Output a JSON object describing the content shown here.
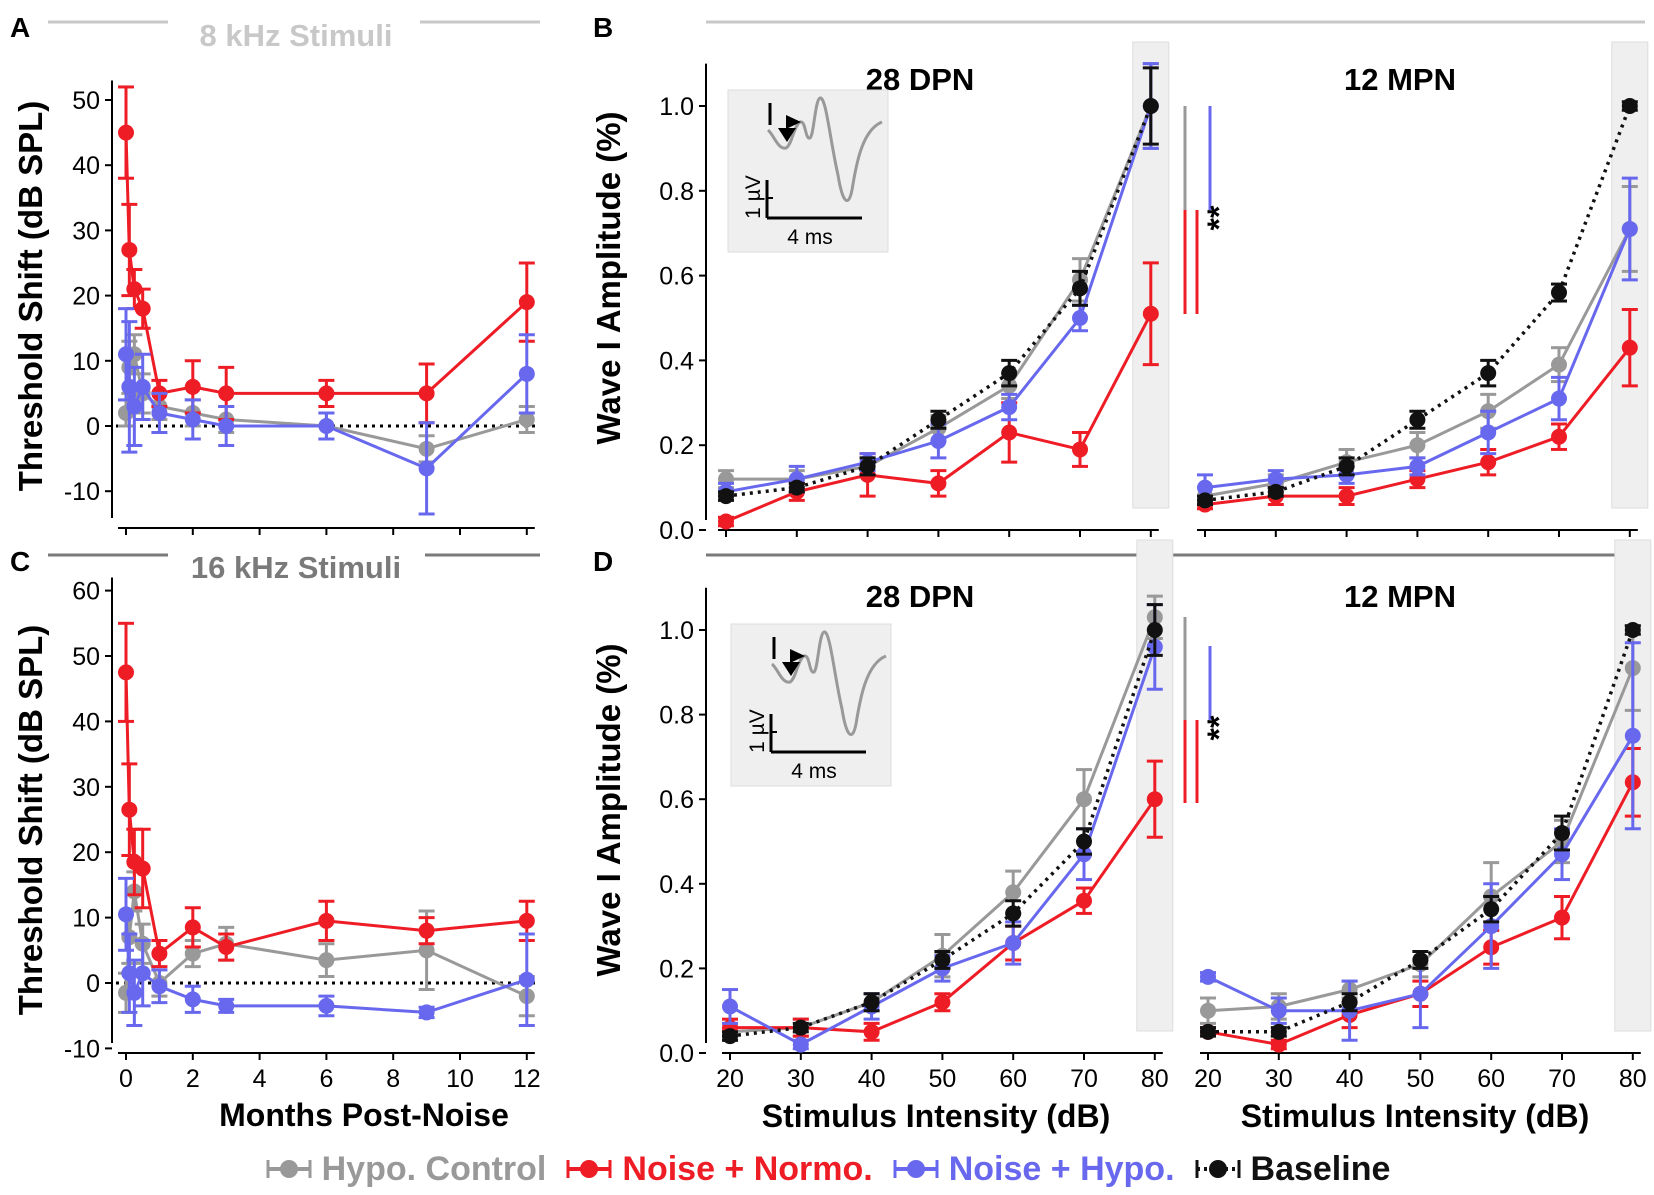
{
  "colors": {
    "hypo_control": "#999999",
    "noise_normo": "#ee1c25",
    "noise_hypo": "#6868ee",
    "baseline": "#111111",
    "shade": "#efefef",
    "title_light": "#c8c8c8",
    "title_dark": "#7a7a7a"
  },
  "legend": [
    {
      "key": "hypo_control",
      "label": "Hypo. Control"
    },
    {
      "key": "noise_normo",
      "label": "Noise + Normo."
    },
    {
      "key": "noise_hypo",
      "label": "Noise + Hypo."
    },
    {
      "key": "baseline",
      "label": "Baseline"
    }
  ],
  "chart_data": [
    {
      "panel": "A",
      "type": "line",
      "title": "8 kHz Stimuli",
      "xlabel": "",
      "ylabel": "Threshold Shift (dB SPL)",
      "xlim": [
        -0.4,
        12.4
      ],
      "ylim": [
        -15,
        53
      ],
      "yticks": [
        -10,
        0,
        10,
        20,
        30,
        40,
        50
      ],
      "ytick_labels": [
        "-10",
        "0",
        "10",
        "20",
        "30",
        "40",
        "50"
      ],
      "xticks": [
        0,
        2,
        4,
        6,
        8,
        10,
        12
      ],
      "xtick_labels": [],
      "reference_line": 0,
      "series": [
        {
          "key": "hypo_control",
          "x": [
            0,
            0.1,
            0.25,
            0.5,
            1,
            2,
            3,
            6,
            9,
            12
          ],
          "y": [
            2,
            9,
            11,
            5,
            3,
            2,
            1,
            0,
            -3.5,
            1
          ],
          "err": [
            2,
            4,
            3,
            3,
            2,
            2,
            2,
            2,
            2,
            2
          ]
        },
        {
          "key": "noise_normo",
          "x": [
            0,
            0.1,
            0.25,
            0.5,
            1,
            2,
            3,
            6,
            9,
            12
          ],
          "y": [
            45,
            27,
            21,
            18,
            5,
            6,
            5,
            5,
            5,
            19
          ],
          "err": [
            7,
            7,
            3,
            3,
            2,
            4,
            4,
            2,
            4.5,
            6
          ]
        },
        {
          "key": "noise_hypo",
          "x": [
            0,
            0.1,
            0.25,
            0.5,
            1,
            2,
            3,
            6,
            9,
            12
          ],
          "y": [
            11,
            6,
            3,
            6,
            2,
            1,
            0,
            0,
            -6.5,
            8
          ],
          "err": [
            7,
            10,
            6,
            5,
            3,
            3,
            3,
            2,
            7,
            6
          ]
        }
      ]
    },
    {
      "panel": "C",
      "type": "line",
      "title": "16 kHz Stimuli",
      "xlabel": "Months Post-Noise",
      "ylabel": "Threshold Shift (dB SPL)",
      "xlim": [
        -0.4,
        12.4
      ],
      "ylim": [
        -10,
        62
      ],
      "yticks": [
        -10,
        0,
        10,
        20,
        30,
        40,
        50,
        60
      ],
      "ytick_labels": [
        "-10",
        "0",
        "10",
        "20",
        "30",
        "40",
        "50",
        "60"
      ],
      "xticks": [
        0,
        2,
        4,
        6,
        8,
        10,
        12
      ],
      "xtick_labels": [
        "0",
        "2",
        "4",
        "6",
        "8",
        "10",
        "12"
      ],
      "reference_line": 0,
      "series": [
        {
          "key": "hypo_control",
          "x": [
            0,
            0.1,
            0.25,
            0.5,
            1,
            2,
            3,
            6,
            9,
            12
          ],
          "y": [
            -1.5,
            7,
            14,
            6,
            0,
            4.5,
            6,
            3.5,
            5,
            -2
          ],
          "err": [
            3,
            4,
            3,
            3,
            2,
            2,
            2.5,
            2.5,
            6,
            3
          ]
        },
        {
          "key": "noise_normo",
          "x": [
            0,
            0.1,
            0.25,
            0.5,
            1,
            2,
            3,
            6,
            9,
            12
          ],
          "y": [
            47.5,
            26.5,
            18.5,
            17.5,
            4.5,
            8.5,
            5.5,
            9.5,
            8,
            9.5
          ],
          "err": [
            7.5,
            7,
            5,
            6,
            2,
            3,
            2,
            3,
            2,
            3
          ]
        },
        {
          "key": "noise_hypo",
          "x": [
            0,
            0.1,
            0.25,
            0.5,
            1,
            2,
            3,
            6,
            9,
            12
          ],
          "y": [
            10.5,
            1.5,
            -1.5,
            1.5,
            -0.5,
            -2.5,
            -3.5,
            -3.5,
            -4.5,
            0.5
          ],
          "err": [
            5.5,
            6,
            5,
            5,
            2.5,
            2,
            1,
            1.5,
            0.8,
            7
          ]
        }
      ]
    },
    {
      "panel": "B",
      "type": "line",
      "subtitle": "28 DPN",
      "xlabel": "",
      "ylabel": "Wave I Amplitude (%)",
      "xlim": [
        17.5,
        82.5
      ],
      "ylim": [
        0,
        1.1
      ],
      "yticks": [
        0.0,
        0.2,
        0.4,
        0.6,
        0.8,
        1.0
      ],
      "ytick_labels": [
        "0.0",
        "0.2",
        "0.4",
        "0.6",
        "0.8",
        "1.0"
      ],
      "xticks": [
        20,
        30,
        40,
        50,
        60,
        70,
        80
      ],
      "xtick_labels": [],
      "shaded_x": 80,
      "significance": "**",
      "inset": {
        "ylabel": "1 µV",
        "xlabel": "4 ms"
      },
      "series": [
        {
          "key": "hypo_control",
          "x": [
            20,
            30,
            40,
            50,
            60,
            70,
            80
          ],
          "y": [
            0.12,
            0.12,
            0.15,
            0.24,
            0.34,
            0.59,
            1.0
          ],
          "err": [
            0.02,
            0.02,
            0.02,
            0.03,
            0.03,
            0.05,
            0.1
          ]
        },
        {
          "key": "noise_normo",
          "x": [
            20,
            30,
            40,
            50,
            60,
            70,
            80
          ],
          "y": [
            0.02,
            0.09,
            0.13,
            0.11,
            0.23,
            0.19,
            0.51
          ],
          "err": [
            0.01,
            0.02,
            0.05,
            0.03,
            0.07,
            0.04,
            0.12
          ]
        },
        {
          "key": "noise_hypo",
          "x": [
            20,
            30,
            40,
            50,
            60,
            70,
            80
          ],
          "y": [
            0.09,
            0.12,
            0.16,
            0.21,
            0.29,
            0.5,
            1.0
          ],
          "err": [
            0.02,
            0.03,
            0.02,
            0.04,
            0.03,
            0.03,
            0.1
          ]
        },
        {
          "key": "baseline",
          "x": [
            20,
            30,
            40,
            50,
            60,
            70,
            80
          ],
          "y": [
            0.08,
            0.1,
            0.15,
            0.26,
            0.37,
            0.57,
            1.0
          ],
          "err": [
            0.01,
            0.01,
            0.02,
            0.02,
            0.03,
            0.04,
            0.09
          ]
        }
      ]
    },
    {
      "panel": "B",
      "type": "line",
      "subtitle": "12 MPN",
      "xlabel": "",
      "ylabel": "",
      "xlim": [
        17.5,
        82.5
      ],
      "ylim": [
        0,
        1.1
      ],
      "yticks": [
        0.0,
        0.2,
        0.4,
        0.6,
        0.8,
        1.0
      ],
      "ytick_labels": [],
      "xticks": [
        20,
        30,
        40,
        50,
        60,
        70,
        80
      ],
      "xtick_labels": [],
      "shaded_x": 80,
      "series": [
        {
          "key": "hypo_control",
          "x": [
            20,
            30,
            40,
            50,
            60,
            70,
            80
          ],
          "y": [
            0.08,
            0.11,
            0.16,
            0.2,
            0.28,
            0.39,
            0.71
          ],
          "err": [
            0.02,
            0.02,
            0.03,
            0.03,
            0.04,
            0.04,
            0.1
          ]
        },
        {
          "key": "noise_normo",
          "x": [
            20,
            30,
            40,
            50,
            60,
            70,
            80
          ],
          "y": [
            0.06,
            0.08,
            0.08,
            0.12,
            0.16,
            0.22,
            0.43
          ],
          "err": [
            0.01,
            0.02,
            0.02,
            0.02,
            0.03,
            0.03,
            0.09
          ]
        },
        {
          "key": "noise_hypo",
          "x": [
            20,
            30,
            40,
            50,
            60,
            70,
            80
          ],
          "y": [
            0.1,
            0.12,
            0.13,
            0.15,
            0.23,
            0.31,
            0.71
          ],
          "err": [
            0.03,
            0.02,
            0.02,
            0.02,
            0.05,
            0.05,
            0.12
          ]
        },
        {
          "key": "baseline",
          "x": [
            20,
            30,
            40,
            50,
            60,
            70,
            80
          ],
          "y": [
            0.07,
            0.09,
            0.15,
            0.26,
            0.37,
            0.56,
            1.0
          ],
          "err": [
            0.01,
            0.01,
            0.02,
            0.02,
            0.03,
            0.02,
            0.01
          ]
        }
      ]
    },
    {
      "panel": "D",
      "type": "line",
      "subtitle": "28 DPN",
      "xlabel": "Stimulus Intensity (dB)",
      "ylabel": "Wave I Amplitude (%)",
      "xlim": [
        17.5,
        82.5
      ],
      "ylim": [
        0,
        1.1
      ],
      "yticks": [
        0.0,
        0.2,
        0.4,
        0.6,
        0.8,
        1.0
      ],
      "ytick_labels": [
        "0.0",
        "0.2",
        "0.4",
        "0.6",
        "0.8",
        "1.0"
      ],
      "xticks": [
        20,
        30,
        40,
        50,
        60,
        70,
        80
      ],
      "xtick_labels": [
        "20",
        "30",
        "40",
        "50",
        "60",
        "70",
        "80"
      ],
      "shaded_x": 80,
      "significance": "**",
      "inset": {
        "ylabel": "1 µV",
        "xlabel": "4 ms"
      },
      "series": [
        {
          "key": "hypo_control",
          "x": [
            20,
            30,
            40,
            50,
            60,
            70,
            80
          ],
          "y": [
            0.05,
            0.06,
            0.12,
            0.23,
            0.38,
            0.6,
            1.03
          ],
          "err": [
            0.02,
            0.02,
            0.02,
            0.05,
            0.05,
            0.07,
            0.05
          ]
        },
        {
          "key": "noise_normo",
          "x": [
            20,
            30,
            40,
            50,
            60,
            70,
            80
          ],
          "y": [
            0.06,
            0.06,
            0.05,
            0.12,
            0.26,
            0.36,
            0.6
          ],
          "err": [
            0.02,
            0.02,
            0.02,
            0.02,
            0.04,
            0.03,
            0.09
          ]
        },
        {
          "key": "noise_hypo",
          "x": [
            20,
            30,
            40,
            50,
            60,
            70,
            80
          ],
          "y": [
            0.11,
            0.02,
            0.11,
            0.2,
            0.26,
            0.47,
            0.96
          ],
          "err": [
            0.04,
            0.01,
            0.03,
            0.03,
            0.05,
            0.06,
            0.1
          ]
        },
        {
          "key": "baseline",
          "x": [
            20,
            30,
            40,
            50,
            60,
            70,
            80
          ],
          "y": [
            0.04,
            0.06,
            0.12,
            0.22,
            0.33,
            0.5,
            1.0
          ],
          "err": [
            0.01,
            0.01,
            0.02,
            0.02,
            0.03,
            0.03,
            0.06
          ]
        }
      ]
    },
    {
      "panel": "D",
      "type": "line",
      "subtitle": "12 MPN",
      "xlabel": "Stimulus Intensity (dB)",
      "ylabel": "",
      "xlim": [
        17.5,
        82.5
      ],
      "ylim": [
        0,
        1.1
      ],
      "yticks": [
        0.0,
        0.2,
        0.4,
        0.6,
        0.8,
        1.0
      ],
      "ytick_labels": [],
      "xticks": [
        20,
        30,
        40,
        50,
        60,
        70,
        80
      ],
      "xtick_labels": [
        "20",
        "30",
        "40",
        "50",
        "60",
        "70",
        "80"
      ],
      "shaded_x": 80,
      "series": [
        {
          "key": "hypo_control",
          "x": [
            20,
            30,
            40,
            50,
            60,
            70,
            80
          ],
          "y": [
            0.1,
            0.11,
            0.15,
            0.21,
            0.37,
            0.5,
            0.91
          ],
          "err": [
            0.03,
            0.03,
            0.02,
            0.03,
            0.08,
            0.05,
            0.1
          ]
        },
        {
          "key": "noise_normo",
          "x": [
            20,
            30,
            40,
            50,
            60,
            70,
            80
          ],
          "y": [
            0.05,
            0.02,
            0.09,
            0.14,
            0.25,
            0.32,
            0.64
          ],
          "err": [
            0.01,
            0.01,
            0.03,
            0.03,
            0.04,
            0.05,
            0.08
          ]
        },
        {
          "key": "noise_hypo",
          "x": [
            20,
            30,
            40,
            50,
            60,
            70,
            80
          ],
          "y": [
            0.18,
            0.1,
            0.1,
            0.14,
            0.3,
            0.47,
            0.75
          ],
          "err": [
            0.01,
            0.03,
            0.07,
            0.08,
            0.1,
            0.06,
            0.22
          ]
        },
        {
          "key": "baseline",
          "x": [
            20,
            30,
            40,
            50,
            60,
            70,
            80
          ],
          "y": [
            0.05,
            0.05,
            0.12,
            0.22,
            0.34,
            0.52,
            1.0
          ],
          "err": [
            0.01,
            0.01,
            0.02,
            0.02,
            0.03,
            0.04,
            0.01
          ]
        }
      ]
    }
  ],
  "panel_labels": {
    "a": "A",
    "b": "B",
    "c": "C",
    "d": "D"
  }
}
